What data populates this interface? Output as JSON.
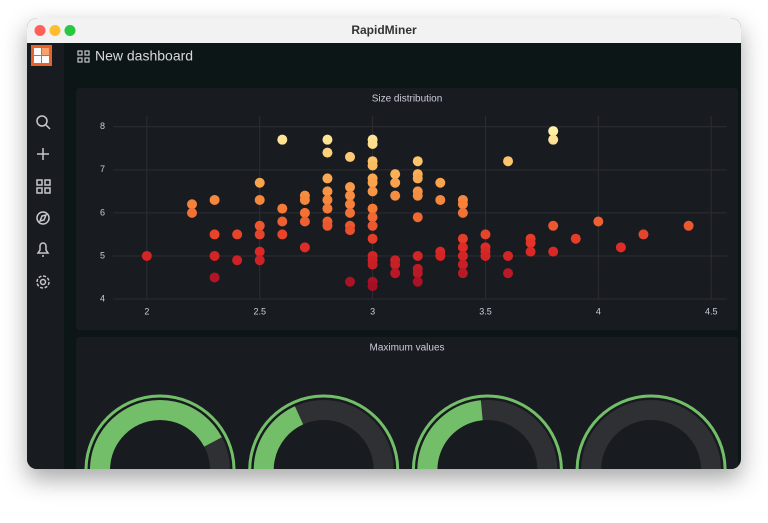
{
  "window_title": "RapidMiner",
  "dashboard_title": "New dashboard",
  "chart_data": [
    {
      "type": "scatter",
      "title": "Size distribution",
      "x": [
        2,
        2.2,
        2.2,
        2.3,
        2.3,
        2.3,
        2.3,
        2.4,
        2.4,
        2.5,
        2.5,
        2.5,
        2.5,
        2.5,
        2.5,
        2.6,
        2.6,
        2.6,
        2.6,
        2.7,
        2.7,
        2.7,
        2.7,
        2.7,
        2.8,
        2.8,
        2.8,
        2.8,
        2.8,
        2.8,
        2.8,
        2.8,
        2.9,
        2.9,
        2.9,
        2.9,
        2.9,
        2.9,
        2.9,
        2.9,
        3.0,
        3.0,
        3.0,
        3.0,
        3.0,
        3.0,
        3.0,
        3.0,
        3.0,
        3.0,
        3.0,
        3.0,
        3.0,
        3.0,
        3.0,
        3.0,
        3.1,
        3.1,
        3.1,
        3.1,
        3.1,
        3.1,
        3.2,
        3.2,
        3.2,
        3.2,
        3.2,
        3.2,
        3.2,
        3.2,
        3.2,
        3.2,
        3.3,
        3.3,
        3.3,
        3.3,
        3.4,
        3.4,
        3.4,
        3.4,
        3.4,
        3.4,
        3.4,
        3.4,
        3.5,
        3.5,
        3.5,
        3.5,
        3.6,
        3.6,
        3.6,
        3.7,
        3.7,
        3.7,
        3.8,
        3.8,
        3.8,
        3.8,
        3.9,
        4.0,
        4.1,
        4.2,
        4.4
      ],
      "values": [
        5.0,
        6.2,
        6.0,
        6.3,
        5.5,
        5.0,
        4.5,
        5.5,
        4.9,
        6.7,
        6.3,
        5.7,
        5.5,
        5.1,
        4.9,
        7.7,
        6.1,
        5.8,
        5.5,
        6.4,
        6.3,
        6.0,
        5.8,
        5.2,
        7.7,
        7.4,
        6.8,
        6.5,
        6.3,
        6.1,
        5.8,
        5.7,
        7.3,
        6.6,
        6.4,
        6.2,
        6.0,
        5.7,
        5.6,
        4.4,
        7.7,
        7.6,
        7.2,
        7.1,
        6.8,
        6.7,
        6.5,
        6.1,
        5.9,
        5.7,
        5.4,
        5.0,
        4.9,
        4.8,
        4.4,
        4.3,
        6.9,
        6.7,
        6.4,
        4.9,
        4.8,
        4.6,
        7.2,
        6.9,
        6.8,
        6.5,
        6.4,
        5.9,
        5.0,
        4.7,
        4.6,
        4.4,
        6.7,
        6.3,
        5.1,
        5.0,
        6.3,
        6.2,
        6.0,
        5.4,
        5.2,
        5.0,
        4.8,
        4.6,
        5.5,
        5.2,
        5.1,
        5.0,
        7.2,
        5.0,
        4.6,
        5.4,
        5.3,
        5.1,
        7.9,
        7.7,
        5.7,
        5.1,
        5.4,
        5.8,
        5.2,
        5.5,
        5.7
      ],
      "xlim": [
        1.85,
        4.57
      ],
      "ylim": [
        4,
        8.25
      ],
      "xticks": [
        2,
        2.5,
        3,
        3.5,
        4,
        4.5
      ],
      "yticks": [
        4,
        5,
        6,
        7,
        8
      ],
      "grid": true,
      "color_scale": [
        "#a50f26",
        "#e02b26",
        "#f47a36",
        "#fbb75a",
        "#fff0a6"
      ]
    },
    {
      "type": "gauge",
      "title": "Maximum values",
      "values": [
        73,
        41,
        48,
        11
      ],
      "ylim": [
        0,
        100
      ],
      "color": "#73bf69",
      "track_color": "#2f3033"
    }
  ]
}
